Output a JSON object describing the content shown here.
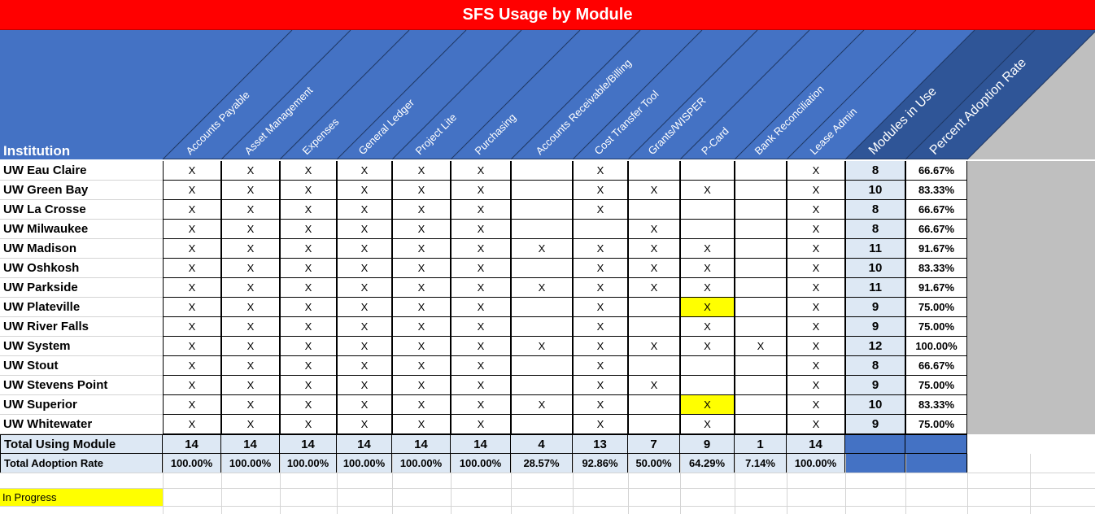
{
  "title": "SFS Usage by Module",
  "header": {
    "institution_label": "Institution",
    "modules": [
      "Accounts Payable",
      "Asset Management",
      "Expenses",
      "General Ledger",
      "Project Lite",
      "Purchasing",
      "Accounts Receivable/Billing",
      "Cost Transfer Tool",
      "Grants/WISPER",
      "P-Card",
      "Bank Reconciliation",
      "Lease Admin"
    ],
    "summary_headers": [
      "Modules in Use",
      "Percent Adoption Rate"
    ]
  },
  "rows": [
    {
      "name": "UW Eau Claire",
      "marks": [
        "X",
        "X",
        "X",
        "X",
        "X",
        "X",
        "",
        "X",
        "",
        "",
        "",
        "X"
      ],
      "count": "8",
      "pct": "66.67%"
    },
    {
      "name": "UW Green Bay",
      "marks": [
        "X",
        "X",
        "X",
        "X",
        "X",
        "X",
        "",
        "X",
        "X",
        "X",
        "",
        "X"
      ],
      "count": "10",
      "pct": "83.33%"
    },
    {
      "name": "UW La Crosse",
      "marks": [
        "X",
        "X",
        "X",
        "X",
        "X",
        "X",
        "",
        "X",
        "",
        "",
        "",
        "X"
      ],
      "count": "8",
      "pct": "66.67%"
    },
    {
      "name": "UW Milwaukee",
      "marks": [
        "X",
        "X",
        "X",
        "X",
        "X",
        "X",
        "",
        "",
        "X",
        "",
        "",
        "X"
      ],
      "count": "8",
      "pct": "66.67%"
    },
    {
      "name": "UW Madison",
      "marks": [
        "X",
        "X",
        "X",
        "X",
        "X",
        "X",
        "X",
        "X",
        "X",
        "X",
        "",
        "X"
      ],
      "count": "11",
      "pct": "91.67%"
    },
    {
      "name": "UW Oshkosh",
      "marks": [
        "X",
        "X",
        "X",
        "X",
        "X",
        "X",
        "",
        "X",
        "X",
        "X",
        "",
        "X"
      ],
      "count": "10",
      "pct": "83.33%"
    },
    {
      "name": "UW Parkside",
      "marks": [
        "X",
        "X",
        "X",
        "X",
        "X",
        "X",
        "X",
        "X",
        "X",
        "X",
        "",
        "X"
      ],
      "count": "11",
      "pct": "91.67%"
    },
    {
      "name": "UW Plateville",
      "marks": [
        "X",
        "X",
        "X",
        "X",
        "X",
        "X",
        "",
        "X",
        "",
        "X",
        "",
        "X"
      ],
      "count": "9",
      "pct": "75.00%",
      "in_progress": [
        9
      ]
    },
    {
      "name": "UW River Falls",
      "marks": [
        "X",
        "X",
        "X",
        "X",
        "X",
        "X",
        "",
        "X",
        "",
        "X",
        "",
        "X"
      ],
      "count": "9",
      "pct": "75.00%"
    },
    {
      "name": "UW System",
      "marks": [
        "X",
        "X",
        "X",
        "X",
        "X",
        "X",
        "X",
        "X",
        "X",
        "X",
        "X",
        "X"
      ],
      "count": "12",
      "pct": "100.00%"
    },
    {
      "name": "UW Stout",
      "marks": [
        "X",
        "X",
        "X",
        "X",
        "X",
        "X",
        "",
        "X",
        "",
        "",
        "",
        "X"
      ],
      "count": "8",
      "pct": "66.67%"
    },
    {
      "name": "UW Stevens Point",
      "marks": [
        "X",
        "X",
        "X",
        "X",
        "X",
        "X",
        "",
        "X",
        "X",
        "",
        "",
        "X"
      ],
      "count": "9",
      "pct": "75.00%"
    },
    {
      "name": "UW Superior",
      "marks": [
        "X",
        "X",
        "X",
        "X",
        "X",
        "X",
        "X",
        "X",
        "",
        "X",
        "",
        "X"
      ],
      "count": "10",
      "pct": "83.33%",
      "in_progress": [
        9
      ]
    },
    {
      "name": "UW Whitewater",
      "marks": [
        "X",
        "X",
        "X",
        "X",
        "X",
        "X",
        "",
        "X",
        "",
        "X",
        "",
        "X"
      ],
      "count": "9",
      "pct": "75.00%"
    }
  ],
  "totals": {
    "using_label": "Total Using Module",
    "using": [
      "14",
      "14",
      "14",
      "14",
      "14",
      "14",
      "4",
      "13",
      "7",
      "9",
      "1",
      "14"
    ],
    "rate_label": "Total Adoption Rate",
    "rate": [
      "100.00%",
      "100.00%",
      "100.00%",
      "100.00%",
      "100.00%",
      "100.00%",
      "28.57%",
      "92.86%",
      "50.00%",
      "64.29%",
      "7.14%",
      "100.00%"
    ]
  },
  "legend": {
    "in_progress_label": "In Progress"
  },
  "colors": {
    "title_bg": "#ff0000",
    "header_blue": "#4472c4",
    "header_dark": "#2f5597",
    "summary_cell_bg": "#dde8f4",
    "header_gray": "#bfbfbf",
    "highlight": "#ffff00"
  }
}
